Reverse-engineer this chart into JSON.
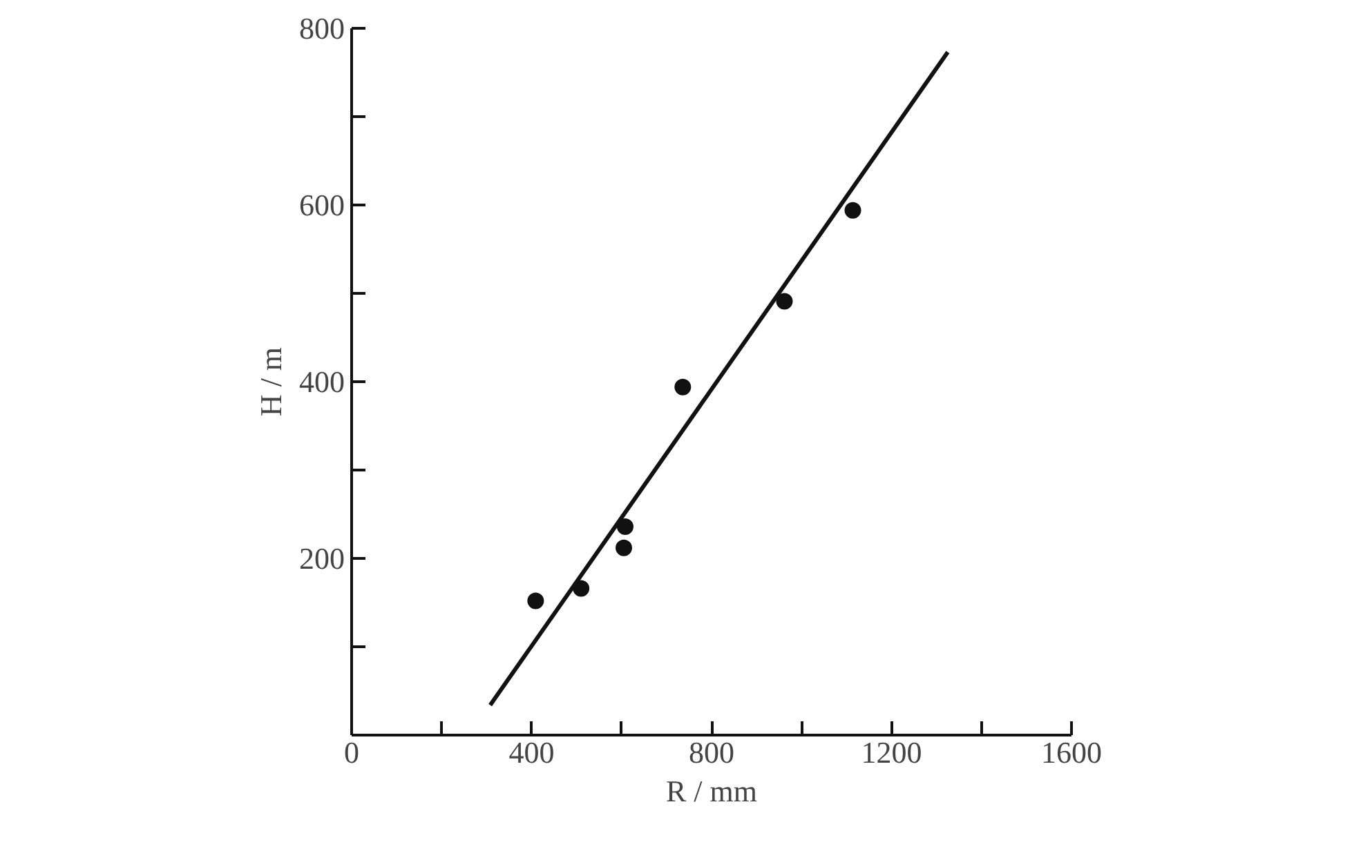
{
  "chart_data": {
    "type": "scatter",
    "xlabel": "R / mm",
    "ylabel": "H / m",
    "xlim": [
      0,
      1600
    ],
    "ylim": [
      0,
      800
    ],
    "xticks": [
      0,
      {
        "value": 200,
        "label": null
      },
      400,
      {
        "value": 600,
        "label": null
      },
      800,
      {
        "value": 1000,
        "label": null
      },
      1200,
      {
        "value": 1400,
        "label": null
      },
      1600
    ],
    "yticks": [
      {
        "value": 100,
        "label": null
      },
      200,
      {
        "value": 300,
        "label": null
      },
      400,
      {
        "value": 500,
        "label": null
      },
      600,
      {
        "value": 700,
        "label": null
      },
      800
    ],
    "grid": false,
    "series": [
      {
        "marker": "circle",
        "color": "#111111",
        "x": [
          409,
          510,
          605,
          608,
          736,
          962,
          1114
        ],
        "values": [
          152,
          166,
          212,
          236,
          394,
          491,
          594
        ]
      },
      {
        "type": "line",
        "marker": "none",
        "color": "#111111",
        "x": [
          308,
          1325
        ],
        "values": [
          34,
          773
        ]
      }
    ]
  }
}
